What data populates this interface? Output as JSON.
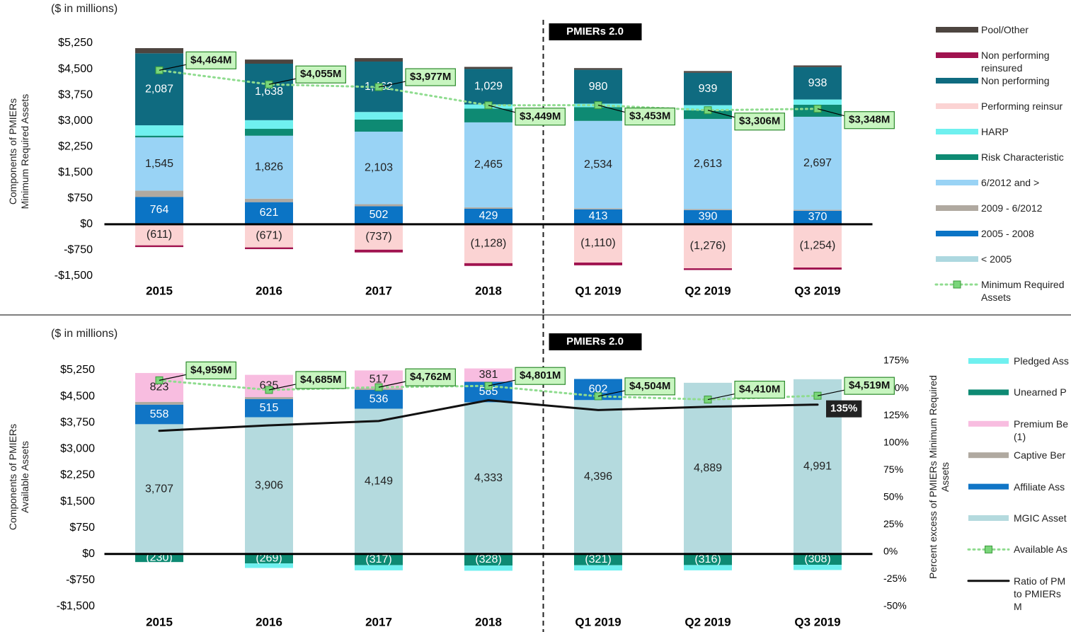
{
  "chart_data": [
    {
      "type": "bar",
      "stacked": true,
      "note": "($ in millions)",
      "annotation": "PMIERs 2.0",
      "ylabel": "Components of PMIERs Minimum Required Assets",
      "categories": [
        "2015",
        "2016",
        "2017",
        "2018",
        "Q1 2019",
        "Q2 2019",
        "Q3 2019"
      ],
      "ylim": [
        -1500,
        5250
      ],
      "yticks": [
        {
          "value": -1500,
          "label": "-$1,500"
        },
        {
          "value": -750,
          "label": "-$750"
        },
        {
          "value": 0,
          "label": "$0"
        },
        {
          "value": 750,
          "label": "$750"
        },
        {
          "value": 1500,
          "label": "$1,500"
        },
        {
          "value": 2250,
          "label": "$2,250"
        },
        {
          "value": 3000,
          "label": "$3,000"
        },
        {
          "value": 3750,
          "label": "$3,750"
        },
        {
          "value": 4500,
          "label": "$4,500"
        },
        {
          "value": 5250,
          "label": "$5,250"
        }
      ],
      "series": [
        {
          "name": "< 2005",
          "color": "#add8e0",
          "values": [
            30,
            20,
            20,
            20,
            20,
            20,
            20
          ]
        },
        {
          "name": "2005 - 2008",
          "color": "#0b74c5",
          "values": [
            764,
            621,
            502,
            429,
            413,
            390,
            370
          ],
          "value_labels": [
            "764",
            "621",
            "502",
            "429",
            "413",
            "390",
            "370"
          ]
        },
        {
          "name": "2009 - 6/2012",
          "color": "#b0a9a0",
          "values": [
            180,
            100,
            60,
            40,
            30,
            30,
            30
          ]
        },
        {
          "name": "6/2012 and >",
          "color": "#99d3f5",
          "values": [
            1545,
            1826,
            2103,
            2465,
            2534,
            2613,
            2697
          ],
          "value_labels": [
            "1,545",
            "1,826",
            "2,103",
            "2,465",
            "2,534",
            "2,613",
            "2,697"
          ]
        },
        {
          "name": "Risk Characteristic",
          "color": "#0e8a73",
          "values": [
            50,
            200,
            350,
            400,
            400,
            250,
            350
          ]
        },
        {
          "name": "HARP",
          "color": "#6ff0ef",
          "values": [
            300,
            250,
            220,
            120,
            100,
            150,
            150
          ]
        },
        {
          "name": "Performing reinsur",
          "color": "#fbd3d3",
          "values": [
            -611,
            -671,
            -737,
            -1128,
            -1110,
            -1276,
            -1254
          ],
          "value_labels": [
            "(611)",
            "(671)",
            "(737)",
            "(1,128)",
            "(1,110)",
            "(1,276)",
            "(1,254)"
          ]
        },
        {
          "name": "Non performing",
          "color": "#0f6b80",
          "values": [
            2087,
            1638,
            1462,
            1029,
            980,
            939,
            938
          ],
          "value_labels": [
            "2,087",
            "1,638",
            "1,462",
            "1,029",
            "980",
            "939",
            "938"
          ]
        },
        {
          "name": "Non performing reinsured",
          "color": "#a0134f",
          "values": [
            -50,
            -50,
            -80,
            -80,
            -80,
            -50,
            -60
          ]
        },
        {
          "name": "Pool/Other",
          "color": "#4d4540",
          "values": [
            150,
            120,
            100,
            60,
            50,
            50,
            50
          ]
        }
      ],
      "lines": [
        {
          "name": "Minimum Required Assets",
          "color": "#8fdc8f",
          "marker_color": "#7ad67a",
          "style": "dotted",
          "values": [
            4464,
            4055,
            3977,
            3449,
            3453,
            3306,
            3348
          ],
          "value_labels": [
            "$4,464M",
            "$4,055M",
            "$3,977M",
            "$3,449M",
            "$3,453M",
            "$3,306M",
            "$3,348M"
          ]
        }
      ]
    },
    {
      "type": "bar",
      "stacked": true,
      "note": "($ in millions)",
      "annotation": "PMIERs 2.0",
      "ylabel": "Components of PMIERs Available Assets",
      "y2label": "Percent excess of PMIERs Minimum Required Assets",
      "categories": [
        "2015",
        "2016",
        "2017",
        "2018",
        "Q1 2019",
        "Q2 2019",
        "Q3 2019"
      ],
      "ylim": [
        -1500,
        5250
      ],
      "yticks": [
        {
          "value": -1500,
          "label": "-$1,500"
        },
        {
          "value": -750,
          "label": "-$750"
        },
        {
          "value": 0,
          "label": "$0"
        },
        {
          "value": 750,
          "label": "$750"
        },
        {
          "value": 1500,
          "label": "$1,500"
        },
        {
          "value": 2250,
          "label": "$2,250"
        },
        {
          "value": 3000,
          "label": "$3,000"
        },
        {
          "value": 3750,
          "label": "$3,750"
        },
        {
          "value": 4500,
          "label": "$4,500"
        },
        {
          "value": 5250,
          "label": "$5,250"
        }
      ],
      "y2lim": [
        -50,
        175
      ],
      "y2ticks": [
        {
          "value": -50,
          "label": "-50%"
        },
        {
          "value": -25,
          "label": "-25%"
        },
        {
          "value": 0,
          "label": "0%"
        },
        {
          "value": 25,
          "label": "25%"
        },
        {
          "value": 50,
          "label": "50%"
        },
        {
          "value": 75,
          "label": "75%"
        },
        {
          "value": 100,
          "label": "100%"
        },
        {
          "value": 125,
          "label": "125%"
        },
        {
          "value": 150,
          "label": "150%"
        },
        {
          "value": 175,
          "label": "175%"
        }
      ],
      "series": [
        {
          "name": "MGIC Asset",
          "color": "#b4dade",
          "values": [
            3707,
            3906,
            4149,
            4333,
            4396,
            4889,
            4991
          ],
          "value_labels": [
            "3,707",
            "3,906",
            "4,149",
            "4,333",
            "4,396",
            "4,889",
            "4,991"
          ]
        },
        {
          "name": "Affiliate Ass",
          "color": "#1075c6",
          "values": [
            558,
            515,
            536,
            585,
            602,
            null,
            null
          ],
          "value_labels": [
            "558",
            "515",
            "536",
            "585",
            "602",
            null,
            null
          ]
        },
        {
          "name": "Captive Ber",
          "color": "#b0a9a0",
          "values": [
            80,
            60,
            40,
            null,
            null,
            null,
            null
          ]
        },
        {
          "name": "Premium Be (1)",
          "color": "#f8bde0",
          "values": [
            823,
            635,
            517,
            381,
            null,
            null,
            null
          ],
          "value_labels": [
            "823",
            "635",
            "517",
            "381",
            null,
            null,
            null
          ]
        },
        {
          "name": "Unearned P",
          "color": "#0e8a73",
          "values": [
            -230,
            -269,
            -317,
            -328,
            -321,
            -316,
            -308
          ],
          "value_labels": [
            "(230)",
            "(269)",
            "(317)",
            "(328)",
            "(321)",
            "(316)",
            "(308)"
          ]
        },
        {
          "name": "Pledged Ass",
          "color": "#6ff0ef",
          "values": [
            null,
            -130,
            -150,
            -150,
            -150,
            -150,
            -150
          ]
        }
      ],
      "lines": [
        {
          "name": "Available As",
          "color": "#8fdc8f",
          "marker_color": "#7ad67a",
          "style": "dotted",
          "values": [
            4959,
            4685,
            4762,
            4801,
            4504,
            4410,
            4519
          ],
          "value_labels": [
            "$4,959M",
            "$4,685M",
            "$4,762M",
            "$4,801M",
            "$4,504M",
            "$4,410M",
            "$4,519M"
          ]
        },
        {
          "name": "Ratio of PM to PMIERs M",
          "color": "#111111",
          "style": "solid",
          "axis": "y2",
          "values": [
            111,
            116,
            120,
            139,
            130,
            133,
            135
          ],
          "value_labels": [
            null,
            null,
            null,
            null,
            null,
            null,
            "135%"
          ]
        }
      ]
    }
  ]
}
